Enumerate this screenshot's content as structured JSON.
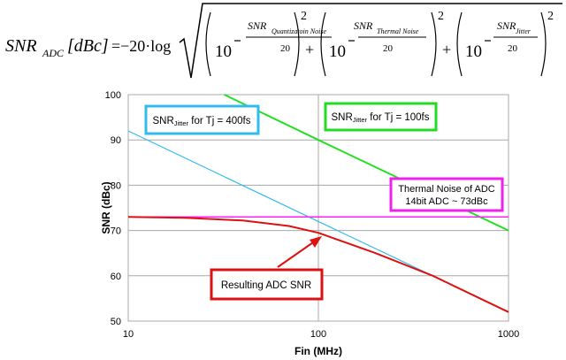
{
  "formula": {
    "lhs_symbol": "SNR",
    "lhs_subscript": "ADC",
    "lhs_unit": "[dBc]",
    "equals_coef": "=−20·log",
    "term_base": "10",
    "term_denominator": "20",
    "plus": "+",
    "square": "2",
    "terms": [
      {
        "snr": "SNR",
        "subscript": "Quantizatoin  Noise"
      },
      {
        "snr": "SNR",
        "subscript": "Thermal  Noise"
      },
      {
        "snr": "SNR",
        "subscript": "Jitter"
      }
    ]
  },
  "chart_data": {
    "type": "line",
    "title": "",
    "xlabel": "Fin (MHz)",
    "ylabel": "SNR (dBc)",
    "xscale": "log",
    "xlim": [
      10,
      1000
    ],
    "ylim": [
      50,
      100
    ],
    "xticks": [
      10,
      100,
      1000
    ],
    "xtick_labels": [
      "10",
      "100",
      "1000"
    ],
    "yticks": [
      50,
      60,
      70,
      80,
      90,
      100
    ],
    "ytick_labels": [
      "50",
      "60",
      "70",
      "80",
      "90",
      "100"
    ],
    "grid": true,
    "series": [
      {
        "name": "SNR Jitter for Tj = 400fs",
        "color": "#33bbee",
        "x": [
          10,
          100,
          400
        ],
        "y": [
          92,
          72,
          60
        ]
      },
      {
        "name": "SNR Jitter for Tj = 100fs",
        "color": "#22e022",
        "x": [
          32,
          100,
          1000
        ],
        "y": [
          100,
          90,
          70
        ]
      },
      {
        "name": "Thermal Noise of ADC",
        "color": "#ff22ff",
        "x": [
          10,
          1000
        ],
        "y": [
          73,
          73
        ]
      },
      {
        "name": "Resulting ADC SNR",
        "color": "#dd1111",
        "x": [
          10,
          20,
          40,
          70,
          100,
          200,
          400,
          1000
        ],
        "y": [
          73,
          72.8,
          72.2,
          71,
          69.5,
          65,
          60,
          52
        ]
      }
    ],
    "annotations": [
      {
        "id": "tj400",
        "text_main": "SNR",
        "text_sub": "Jitter",
        "text_rest": " for Tj = 400fs",
        "border_color": "#33bbee"
      },
      {
        "id": "tj100",
        "text_main": "SNR",
        "text_sub": "Jitter",
        "text_rest": " for Tj = 100fs",
        "border_color": "#22dd22"
      },
      {
        "id": "thermal",
        "line1": "Thermal Noise of ADC",
        "line2": "14bit ADC ~ 73dBc",
        "border_color": "#ee22ee"
      },
      {
        "id": "result",
        "text": "Resulting ADC SNR",
        "border_color": "#dd1111"
      }
    ]
  }
}
